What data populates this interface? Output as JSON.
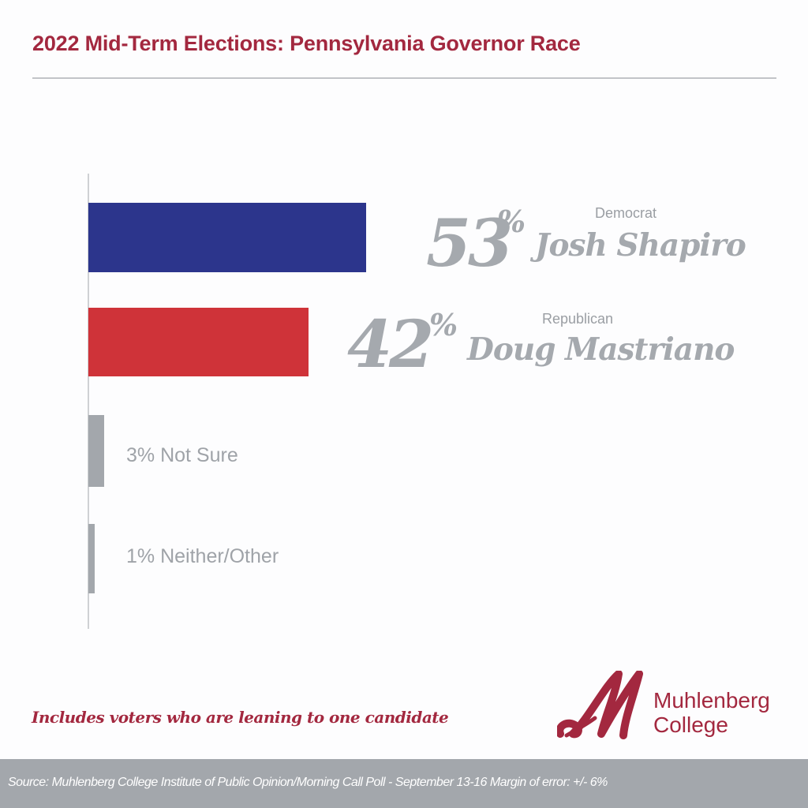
{
  "header": {
    "title": "2022 Mid-Term Elections: Pennsylvania Governor Race"
  },
  "candidates": [
    {
      "percent": "53",
      "pct_sign": "%",
      "party": "Democrat",
      "name": "Josh Shapiro",
      "color": "#2c358c"
    },
    {
      "percent": "42",
      "pct_sign": "%",
      "party": "Republican",
      "name": "Doug Mastriano",
      "color": "#cf3339"
    }
  ],
  "others": [
    {
      "label": "3% Not Sure",
      "color": "#a3a7ac"
    },
    {
      "label": "1% Neither/Other",
      "color": "#a3a7ac"
    }
  ],
  "note": "Includes voters who are leaning to one candidate",
  "logo": {
    "line1": "Muhlenberg",
    "line2": "College",
    "color": "#a3283f"
  },
  "footer": {
    "source": "Source: Muhlenberg College Institute of Public Opinion/Morning Call Poll - September 13-16  Margin of error: +/- 6%"
  },
  "chart_data": {
    "type": "bar",
    "orientation": "horizontal",
    "title": "2022 Mid-Term Elections: Pennsylvania Governor Race",
    "categories": [
      "Josh Shapiro (Democrat)",
      "Doug Mastriano (Republican)",
      "Not Sure",
      "Neither/Other"
    ],
    "values": [
      53,
      42,
      3,
      1
    ],
    "unit": "%",
    "colors": [
      "#2c358c",
      "#cf3339",
      "#a3a7ac",
      "#a3a7ac"
    ],
    "xlabel": "",
    "ylabel": "",
    "xlim": [
      0,
      100
    ],
    "grid": false,
    "legend": "none",
    "annotations": [
      "Includes voters who are leaning to one candidate"
    ],
    "source": "Source: Muhlenberg College Institute of Public Opinion/Morning Call Poll - September 13-16  Margin of error: +/- 6%"
  }
}
